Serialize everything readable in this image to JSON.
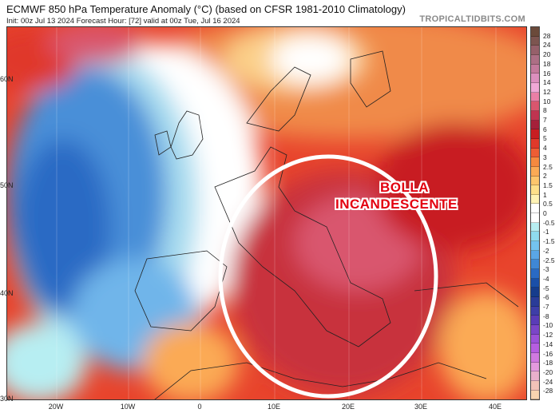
{
  "header": {
    "title": "ECMWF 850 hPa Temperature Anomaly (°C) (based on CFSR 1981-2010 Climatology)",
    "subtitle": "Init: 00z Jul 13 2024   Forecast Hour: [72]   valid at 00z Tue, Jul 16 2024",
    "brand": "TROPICALTIDBITS.COM"
  },
  "axes": {
    "lat_labels": [
      "60N",
      "50N",
      "40N",
      "30N"
    ],
    "lon_labels": [
      "20W",
      "10W",
      "0",
      "10E",
      "20E",
      "30E",
      "40E"
    ]
  },
  "annotation": {
    "line1": "BOLLA",
    "line2": "INCANDESCENTE",
    "circle_color": "#ffffff"
  },
  "colorbar": {
    "labels": [
      "28",
      "24",
      "20",
      "18",
      "16",
      "14",
      "12",
      "10",
      "8",
      "7",
      "6",
      "5",
      "4",
      "3",
      "2.5",
      "2",
      "1.5",
      "1",
      "0.5",
      "0",
      "-0.5",
      "-1",
      "-1.5",
      "-2",
      "-2.5",
      "-3",
      "-4",
      "-5",
      "-6",
      "-7",
      "-8",
      "-10",
      "-12",
      "-14",
      "-16",
      "-18",
      "-20",
      "-24",
      "-28"
    ],
    "colors": [
      "#6b4a3a",
      "#7d5550",
      "#96606a",
      "#ad6f85",
      "#c47a9c",
      "#dc8fbe",
      "#f0a8d6",
      "#ea7fa6",
      "#d9566e",
      "#bf3450",
      "#a5203a",
      "#c81e22",
      "#e0392a",
      "#ee5d34",
      "#f6893f",
      "#fbaa55",
      "#fdc66c",
      "#fee08a",
      "#fff3b5",
      "#ffffff",
      "#ffffff",
      "#b7eef2",
      "#8fdcef",
      "#74c3ee",
      "#5aa6e6",
      "#3f87d6",
      "#2a6ac4",
      "#1a4fa8",
      "#163c8c",
      "#2a3c98",
      "#3e3ea8",
      "#5a3cb8",
      "#7b46c8",
      "#9b52d8",
      "#b65ee0",
      "#d07ae0",
      "#e49ade",
      "#eab0cc",
      "#f2c2b8",
      "#f7d4b0"
    ]
  }
}
